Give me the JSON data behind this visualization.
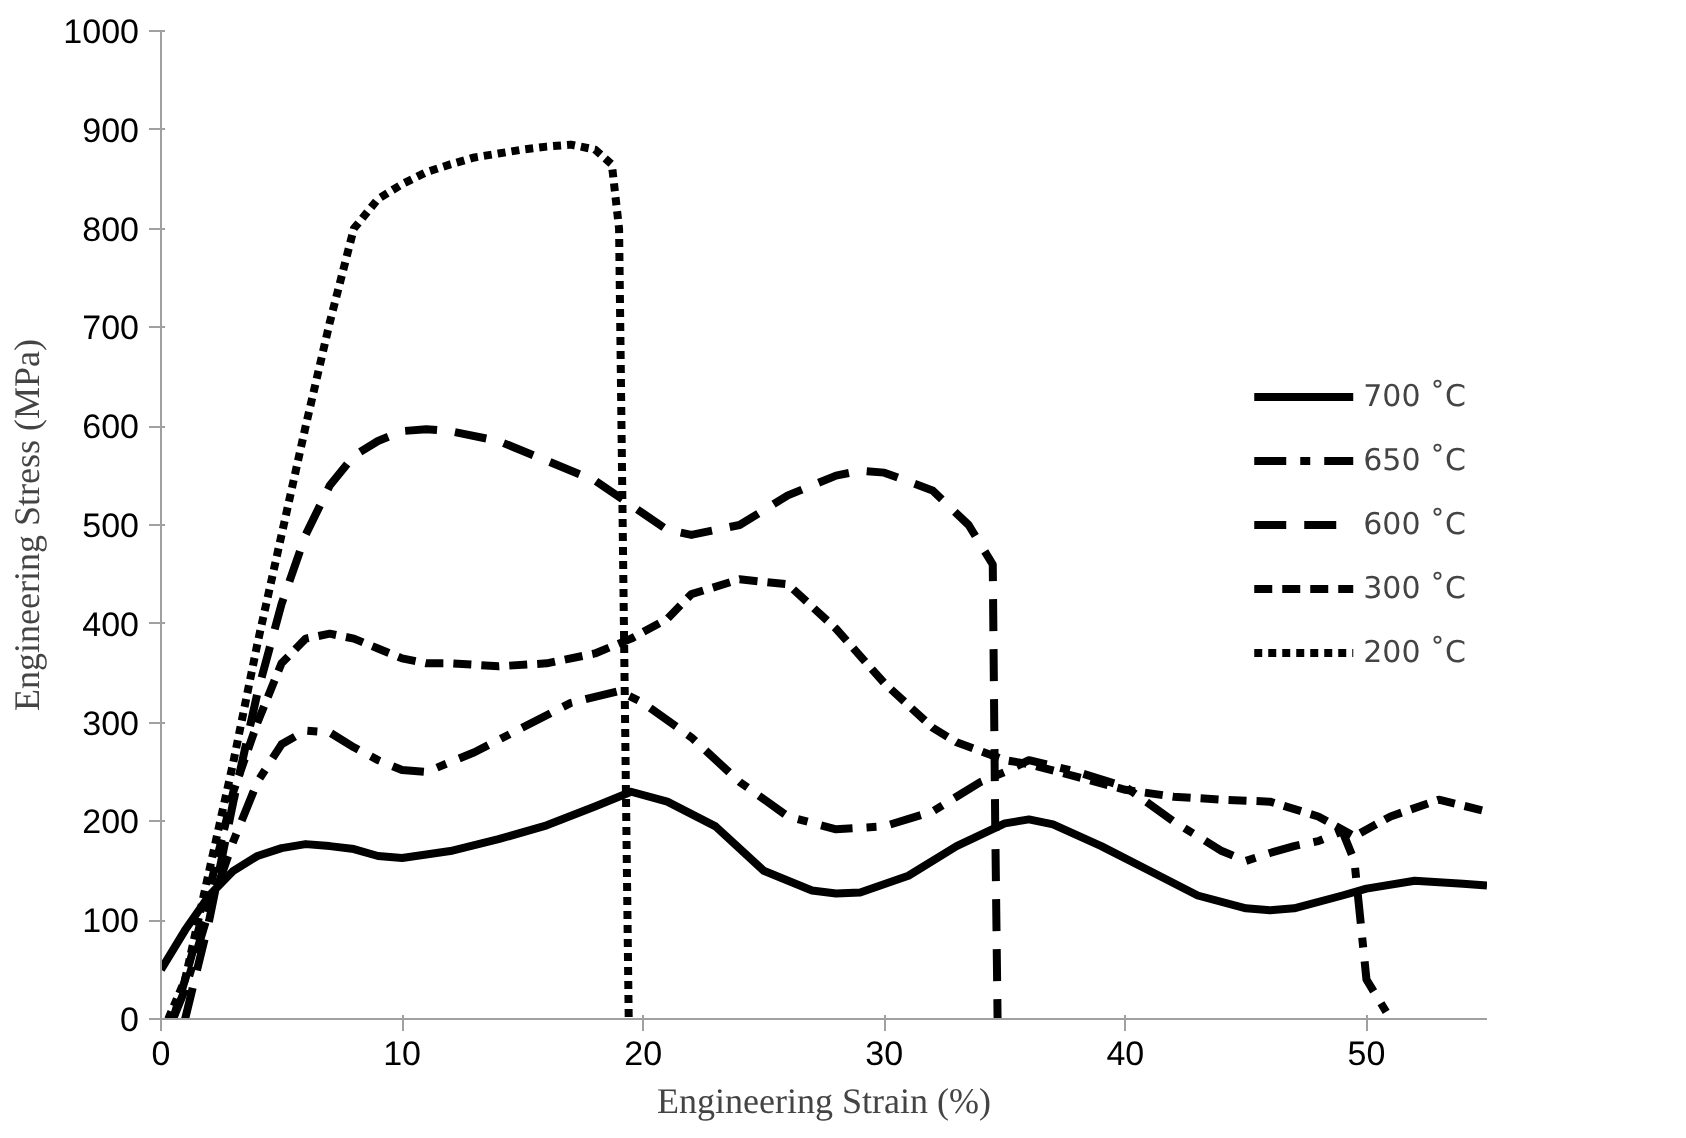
{
  "chart_data": {
    "type": "line",
    "xlabel": "Engineering Strain (%)",
    "ylabel": "Engineering Stress (MPa)",
    "xlim": [
      0,
      55
    ],
    "ylim": [
      0,
      1000
    ],
    "xticks": [
      0,
      10,
      20,
      30,
      40,
      50
    ],
    "yticks": [
      0,
      100,
      200,
      300,
      400,
      500,
      600,
      700,
      800,
      900,
      1000
    ],
    "grid": false,
    "legend": "right",
    "series": [
      {
        "name": "700 ˚C",
        "color": "#000000",
        "line_style": "solid",
        "x": [
          0,
          1,
          2,
          3,
          4,
          5,
          6,
          7,
          8,
          9,
          10,
          12,
          14,
          16,
          18,
          19.5,
          21,
          23,
          25,
          27,
          28,
          29,
          31,
          33,
          35,
          36,
          37,
          39,
          41,
          43,
          45,
          46,
          47,
          49,
          50,
          52,
          54,
          55
        ],
        "values": [
          50,
          90,
          125,
          150,
          165,
          173,
          177,
          175,
          172,
          165,
          163,
          170,
          182,
          196,
          215,
          230,
          220,
          195,
          150,
          130,
          127,
          128,
          145,
          175,
          198,
          202,
          197,
          175,
          150,
          125,
          112,
          110,
          112,
          125,
          132,
          140,
          137,
          135
        ]
      },
      {
        "name": "650 ˚C",
        "color": "#000000",
        "line_style": "dashdot",
        "x": [
          0.5,
          1,
          2,
          3,
          4,
          5,
          6,
          7,
          8,
          9,
          10,
          11,
          13,
          15,
          17,
          19,
          20,
          22,
          24,
          26,
          28,
          30,
          32,
          34,
          35,
          36,
          38,
          40,
          42,
          44,
          45,
          46,
          47,
          48,
          49,
          49.5,
          50,
          51
        ],
        "values": [
          0,
          30,
          110,
          180,
          240,
          278,
          292,
          290,
          275,
          262,
          252,
          250,
          270,
          295,
          320,
          332,
          320,
          285,
          240,
          205,
          192,
          195,
          210,
          240,
          250,
          262,
          250,
          235,
          200,
          170,
          160,
          168,
          175,
          180,
          190,
          160,
          40,
          0
        ]
      },
      {
        "name": "600 ˚C",
        "color": "#000000",
        "line_style": "longdash",
        "x": [
          1,
          2,
          3,
          4,
          5,
          6,
          7,
          8,
          9,
          10,
          11,
          12,
          14,
          16,
          18,
          19.5,
          21,
          22,
          24,
          26,
          28,
          29,
          30,
          32,
          33.5,
          34.5,
          34.6,
          34.7
        ],
        "values": [
          0,
          100,
          220,
          330,
          420,
          490,
          540,
          570,
          585,
          595,
          597,
          595,
          585,
          565,
          545,
          520,
          495,
          490,
          500,
          530,
          550,
          555,
          553,
          535,
          500,
          460,
          200,
          0
        ]
      },
      {
        "name": "300 ˚C",
        "color": "#000000",
        "line_style": "dashed",
        "x": [
          0.5,
          1,
          2,
          3,
          4,
          5,
          6,
          7,
          8,
          9,
          10,
          11,
          12,
          14,
          16,
          18,
          19.5,
          21,
          22,
          24,
          26,
          28,
          30,
          32,
          33,
          35,
          36,
          38,
          40,
          42,
          44,
          46,
          48,
          49.5,
          51,
          53,
          55
        ],
        "values": [
          0,
          40,
          130,
          230,
          300,
          360,
          385,
          390,
          385,
          375,
          365,
          360,
          360,
          357,
          360,
          370,
          385,
          405,
          430,
          445,
          440,
          395,
          340,
          295,
          280,
          262,
          258,
          245,
          232,
          225,
          222,
          220,
          205,
          185,
          205,
          222,
          210
        ]
      },
      {
        "name": "200 ˚C",
        "color": "#000000",
        "line_style": "dotted",
        "x": [
          0.3,
          1,
          2,
          3,
          4,
          5,
          6,
          7,
          8,
          9,
          10,
          11,
          12,
          13,
          14,
          15,
          16,
          17,
          18,
          18.7,
          19,
          19.2,
          19.4
        ],
        "values": [
          0,
          40,
          150,
          260,
          380,
          490,
          600,
          705,
          800,
          830,
          845,
          857,
          865,
          872,
          876,
          880,
          883,
          885,
          880,
          865,
          800,
          400,
          0
        ]
      }
    ]
  }
}
